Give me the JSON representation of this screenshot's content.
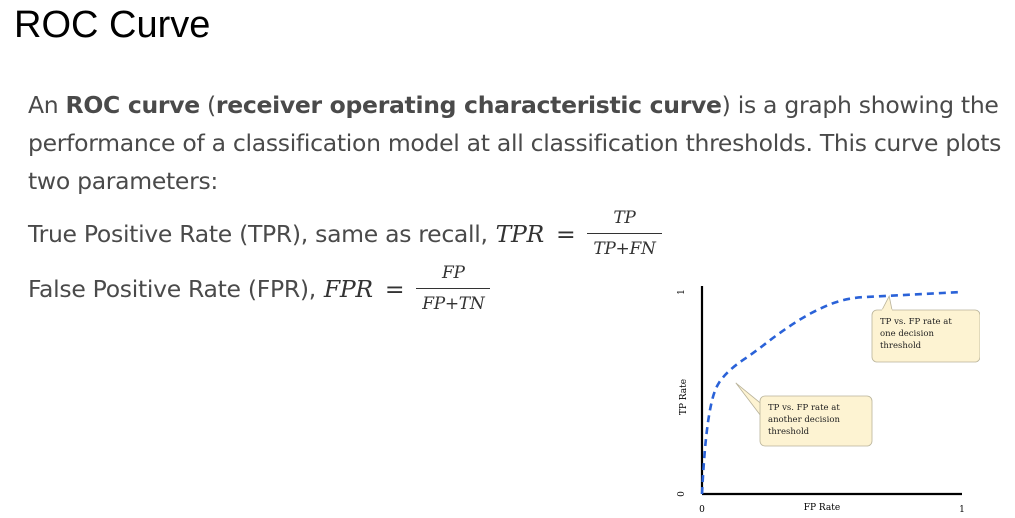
{
  "title": "ROC Curve",
  "intro": {
    "p1": "An ",
    "b1": "ROC curve",
    "p2": " (",
    "b2": "receiver operating characteristic curve",
    "p3": ") is a graph showing the performance of a classification model at all classification thresholds. This curve plots two parameters:"
  },
  "tpr": {
    "label": "True Positive Rate (TPR), same as recall,",
    "symbol": "TPR",
    "equals": "=",
    "numerator": "TP",
    "denominator": "TP+FN"
  },
  "fpr": {
    "label": "False Positive Rate (FPR),",
    "symbol": "FPR",
    "equals": "=",
    "numerator": "FP",
    "denominator": "FP+TN"
  },
  "chart_data": {
    "type": "line",
    "xlabel": "FP Rate",
    "ylabel": "TP Rate",
    "xlim": [
      0,
      1
    ],
    "ylim": [
      0,
      1
    ],
    "x_ticks": [
      "0",
      "1"
    ],
    "y_ticks": [
      "0",
      "1"
    ],
    "grid": false,
    "line_color": "#2a62d8",
    "line_style": "dashed",
    "x": [
      0.0,
      0.005,
      0.015,
      0.03,
      0.05,
      0.08,
      0.13,
      0.2,
      0.3,
      0.42,
      0.55,
      0.7,
      0.85,
      1.0
    ],
    "y": [
      0.0,
      0.12,
      0.28,
      0.42,
      0.52,
      0.58,
      0.64,
      0.7,
      0.8,
      0.9,
      0.97,
      0.98,
      0.99,
      1.0
    ],
    "annotations": [
      {
        "lines": [
          "TP vs. FP rate at",
          "one decision",
          "threshold"
        ],
        "point": [
          0.72,
          0.98
        ],
        "box_color": "#fdf3d2"
      },
      {
        "lines": [
          "TP vs. FP rate at",
          "another decision",
          "threshold"
        ],
        "point": [
          0.13,
          0.55
        ],
        "box_color": "#fdf3d2"
      }
    ]
  }
}
